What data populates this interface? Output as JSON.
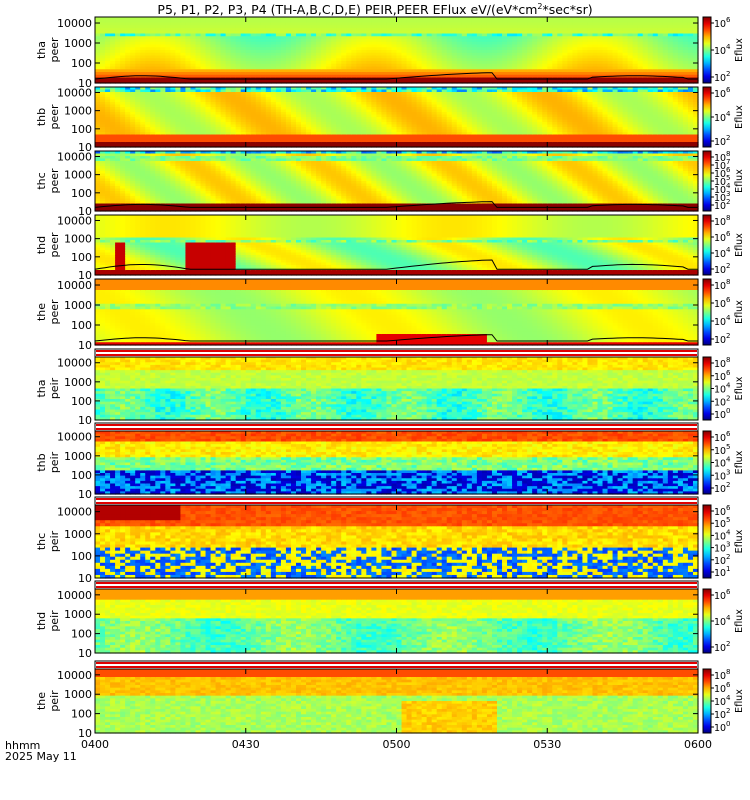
{
  "title_prefix": "P5, P1, P2, P3, P4 (TH-A,B,C,D,E) PEIR,PEER EFlux eV/(eV*cm",
  "title_sup": "2",
  "title_suffix": "*sec*sr)",
  "footer": {
    "time_label": "hhmm",
    "date_label": "2025 May 11"
  },
  "chart_data": {
    "type": "heatmap",
    "x_tick_labels": [
      "0400",
      "0430",
      "0500",
      "0530",
      "0600"
    ],
    "x_ticks_minutes": [
      0,
      30,
      60,
      90,
      120
    ],
    "colorbar_label": "Eflux",
    "panels": [
      {
        "probe": "tha",
        "product": "peer",
        "y_ticks": [
          "10000",
          "1000",
          "100",
          "10"
        ],
        "cb_ticks": [
          "6",
          "4",
          "2"
        ],
        "kind": "electron",
        "curve": true
      },
      {
        "probe": "thb",
        "product": "peer",
        "y_ticks": [
          "10000",
          "1000",
          "100",
          "10"
        ],
        "cb_ticks": [
          "6",
          "4",
          "2"
        ],
        "kind": "electron_b",
        "curve": false
      },
      {
        "probe": "thc",
        "product": "peer",
        "y_ticks": [
          "10000",
          "1000",
          "100",
          "10"
        ],
        "cb_ticks": [
          "8",
          "7",
          "6",
          "5",
          "4",
          "3",
          "2"
        ],
        "kind": "electron_c",
        "curve": true
      },
      {
        "probe": "thd",
        "product": "peer",
        "y_ticks": [
          "10000",
          "1000",
          "100",
          "10"
        ],
        "cb_ticks": [
          "8",
          "6",
          "4",
          "2"
        ],
        "kind": "electron_d",
        "curve": true
      },
      {
        "probe": "the",
        "product": "peer",
        "y_ticks": [
          "10000",
          "1000",
          "100",
          "10"
        ],
        "cb_ticks": [
          "8",
          "6",
          "4",
          "2"
        ],
        "kind": "electron_e",
        "curve": true
      },
      {
        "probe": "tha",
        "product": "peir",
        "y_ticks": [
          "10000",
          "1000",
          "100",
          "10"
        ],
        "cb_ticks": [
          "8",
          "6",
          "4",
          "2",
          "0"
        ],
        "kind": "ion_a",
        "curve": false
      },
      {
        "probe": "thb",
        "product": "peir",
        "y_ticks": [
          "10000",
          "1000",
          "100",
          "10"
        ],
        "cb_ticks": [
          "6",
          "5",
          "4",
          "3",
          "2"
        ],
        "kind": "ion_b",
        "curve": false
      },
      {
        "probe": "thc",
        "product": "peir",
        "y_ticks": [
          "10000",
          "1000",
          "100",
          "10"
        ],
        "cb_ticks": [
          "6",
          "5",
          "4",
          "3",
          "2",
          "1"
        ],
        "kind": "ion_c",
        "curve": false
      },
      {
        "probe": "thd",
        "product": "peir",
        "y_ticks": [
          "10000",
          "1000",
          "100",
          "10"
        ],
        "cb_ticks": [
          "6",
          "4",
          "2"
        ],
        "kind": "ion_d",
        "curve": false
      },
      {
        "probe": "the",
        "product": "peir",
        "y_ticks": [
          "10000",
          "1000",
          "100",
          "10"
        ],
        "cb_ticks": [
          "8",
          "6",
          "4",
          "2",
          "0"
        ],
        "kind": "ion_e",
        "curve": false
      }
    ]
  }
}
